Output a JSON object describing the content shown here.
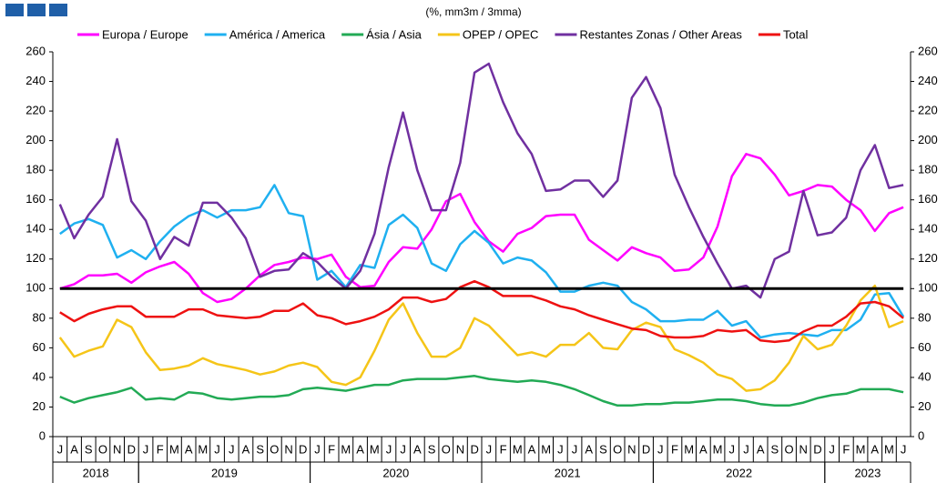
{
  "chart_data": {
    "type": "line",
    "subtitle": "(%, mm3m / 3mma)",
    "categories": [
      "J",
      "A",
      "S",
      "O",
      "N",
      "D",
      "J",
      "F",
      "M",
      "A",
      "M",
      "J",
      "J",
      "A",
      "S",
      "O",
      "N",
      "D",
      "J",
      "F",
      "M",
      "A",
      "M",
      "J",
      "J",
      "A",
      "S",
      "O",
      "N",
      "D",
      "J",
      "F",
      "M",
      "A",
      "M",
      "J",
      "J",
      "A",
      "S",
      "O",
      "N",
      "D",
      "J",
      "F",
      "M",
      "A",
      "M",
      "J",
      "J",
      "A",
      "S",
      "O",
      "N",
      "D",
      "J",
      "F",
      "M",
      "A",
      "M",
      "J"
    ],
    "years": [
      "2018",
      "2019",
      "2020",
      "2021",
      "2022",
      "2023"
    ],
    "series": [
      {
        "name": "Europa / Europe",
        "color": "#ff00ff",
        "values": [
          100,
          103,
          109,
          109,
          110,
          104,
          111,
          115,
          118,
          110,
          97,
          91,
          93,
          100,
          109,
          116,
          118,
          121,
          120,
          123,
          108,
          101,
          102,
          118,
          128,
          127,
          140,
          159,
          164,
          145,
          132,
          125,
          137,
          141,
          149,
          150,
          150,
          133,
          126,
          119,
          128,
          124,
          121,
          112,
          113,
          121,
          142,
          176,
          191,
          188,
          177,
          163,
          166,
          170,
          169,
          160,
          153,
          139,
          151,
          155
        ]
      },
      {
        "name": "América / America",
        "color": "#1fb0f0",
        "values": [
          137,
          144,
          147,
          143,
          121,
          126,
          120,
          132,
          142,
          149,
          153,
          148,
          153,
          153,
          155,
          170,
          151,
          149,
          106,
          112,
          101,
          116,
          114,
          143,
          150,
          141,
          117,
          112,
          130,
          139,
          131,
          117,
          121,
          119,
          111,
          98,
          98,
          102,
          104,
          102,
          91,
          86,
          78,
          78,
          79,
          79,
          85,
          75,
          78,
          67,
          69,
          70,
          69,
          68,
          72,
          72,
          79,
          96,
          97,
          81
        ]
      },
      {
        "name": "Ásia / Asia",
        "color": "#22aa55",
        "values": [
          27,
          23,
          26,
          28,
          30,
          33,
          25,
          26,
          25,
          30,
          29,
          26,
          25,
          26,
          27,
          27,
          28,
          32,
          33,
          32,
          31,
          33,
          35,
          35,
          38,
          39,
          39,
          39,
          40,
          41,
          39,
          38,
          37,
          38,
          37,
          35,
          32,
          28,
          24,
          21,
          21,
          22,
          22,
          23,
          23,
          24,
          25,
          25,
          24,
          22,
          21,
          21,
          23,
          26,
          28,
          29,
          32,
          32,
          32,
          30
        ]
      },
      {
        "name": "OPEP / OPEC",
        "color": "#f5c518",
        "values": [
          67,
          54,
          58,
          61,
          79,
          74,
          57,
          45,
          46,
          48,
          53,
          49,
          47,
          45,
          42,
          44,
          48,
          50,
          47,
          37,
          35,
          40,
          58,
          79,
          90,
          70,
          54,
          54,
          60,
          80,
          75,
          65,
          55,
          57,
          54,
          62,
          62,
          70,
          60,
          59,
          72,
          77,
          74,
          59,
          55,
          50,
          42,
          39,
          31,
          32,
          38,
          50,
          68,
          59,
          62,
          75,
          92,
          102,
          74,
          78
        ]
      },
      {
        "name": "Restantes Zonas / Other Areas",
        "color": "#7030a0",
        "values": [
          157,
          134,
          150,
          162,
          201,
          159,
          146,
          120,
          135,
          129,
          158,
          158,
          148,
          134,
          108,
          112,
          113,
          124,
          118,
          108,
          100,
          112,
          137,
          182,
          219,
          180,
          153,
          153,
          185,
          246,
          252,
          226,
          205,
          191,
          166,
          167,
          173,
          173,
          162,
          173,
          229,
          243,
          222,
          177,
          155,
          135,
          117,
          100,
          102,
          94,
          120,
          125,
          166,
          136,
          138,
          148,
          180,
          197,
          168,
          170
        ]
      },
      {
        "name": "Total",
        "color": "#ee1111",
        "values": [
          84,
          78,
          83,
          86,
          88,
          88,
          81,
          81,
          81,
          86,
          86,
          82,
          81,
          80,
          81,
          85,
          85,
          90,
          82,
          80,
          76,
          78,
          81,
          86,
          94,
          94,
          91,
          93,
          101,
          105,
          101,
          95,
          95,
          95,
          92,
          88,
          86,
          82,
          79,
          76,
          73,
          72,
          68,
          67,
          67,
          68,
          72,
          71,
          72,
          65,
          64,
          65,
          71,
          75,
          75,
          81,
          90,
          91,
          88,
          80
        ]
      }
    ],
    "reference_line": 100,
    "ylim": [
      0,
      260
    ],
    "yticks": [
      0,
      20,
      40,
      60,
      80,
      100,
      120,
      140,
      160,
      180,
      200,
      220,
      240,
      260
    ],
    "y2lim": [
      0,
      260
    ],
    "y2ticks": [
      0,
      20,
      40,
      60,
      80,
      100,
      120,
      140,
      160,
      180,
      200,
      220,
      240,
      260
    ]
  }
}
